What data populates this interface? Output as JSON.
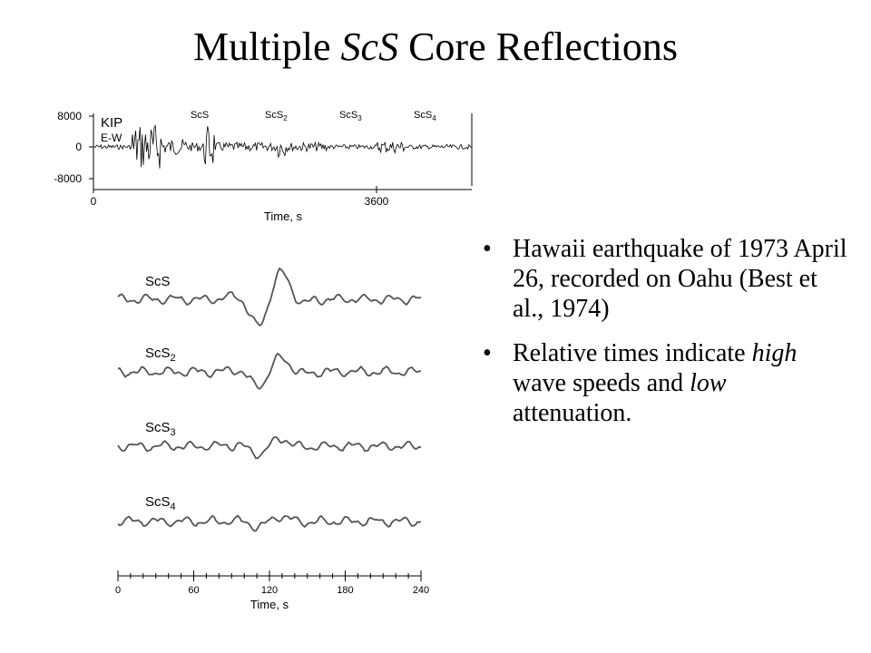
{
  "title": {
    "prefix": "Multiple ",
    "italic": "ScS",
    "suffix": " Core Reflections"
  },
  "top_plot": {
    "station": "KIP",
    "component": "E-W",
    "y_ticks": [
      "8000",
      "0",
      "-8000"
    ],
    "x_ticks": [
      "0",
      "3600"
    ],
    "xlabel": "Time, s",
    "phases": [
      {
        "base": "ScS",
        "sub": ""
      },
      {
        "base": "ScS",
        "sub": "2"
      },
      {
        "base": "ScS",
        "sub": "3"
      },
      {
        "base": "ScS",
        "sub": "4"
      }
    ]
  },
  "bottom_plot": {
    "traces": [
      {
        "base": "ScS",
        "sub": ""
      },
      {
        "base": "ScS",
        "sub": "2"
      },
      {
        "base": "ScS",
        "sub": "3"
      },
      {
        "base": "ScS",
        "sub": "4"
      }
    ],
    "x_ticks": [
      "0",
      "60",
      "120",
      "180",
      "240"
    ],
    "xlabel": "Time, s"
  },
  "bullets": {
    "b1": "Hawaii earthquake of 1973 April 26, recorded on Oahu (Best et al., 1974)",
    "b2_pre": "Relative times indicate ",
    "b2_em1": "high",
    "b2_mid": " wave speeds and ",
    "b2_em2": "low",
    "b2_post": " attenuation."
  }
}
